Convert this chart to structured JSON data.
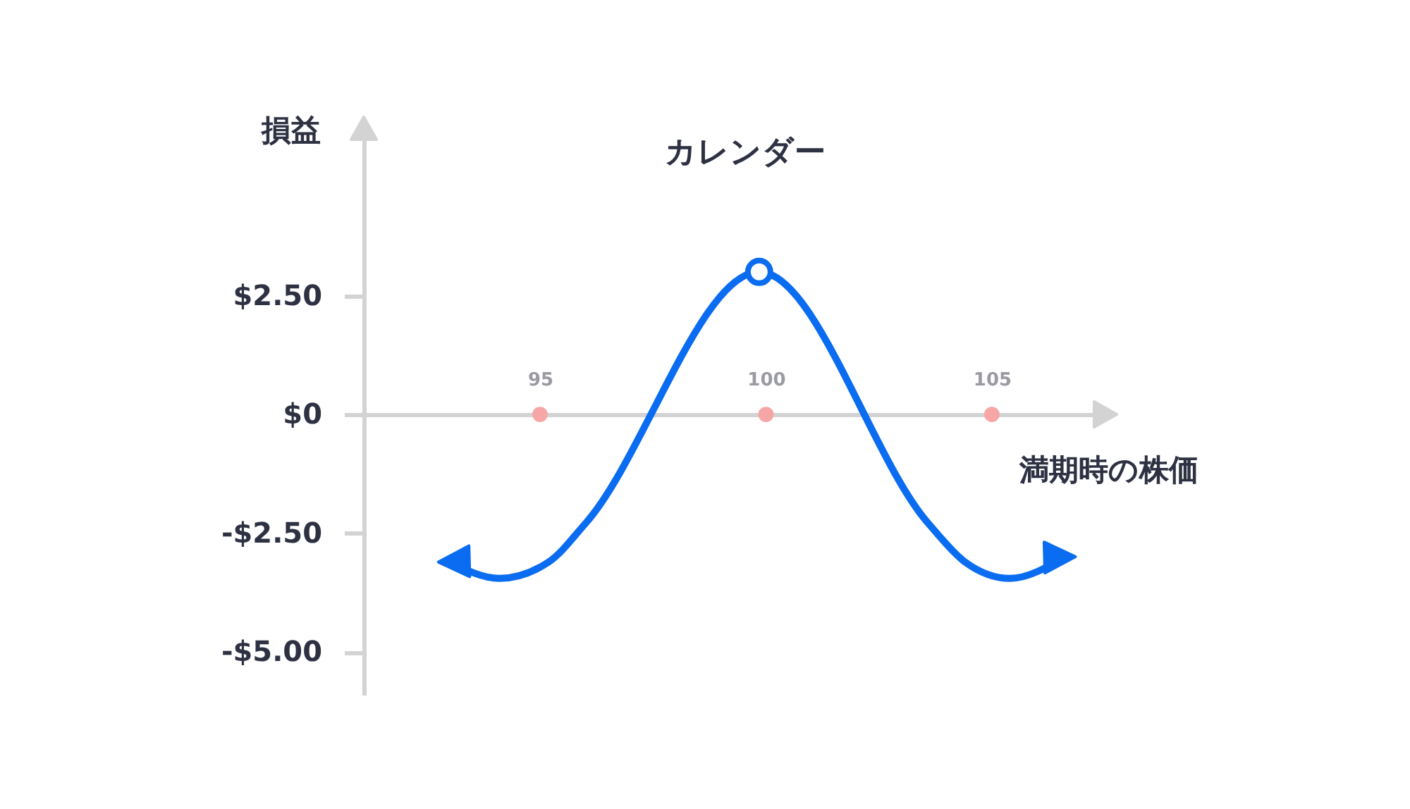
{
  "chart_data": {
    "type": "line",
    "title": "カレンダー",
    "xlabel": "満期時の株価",
    "ylabel": "損益",
    "xlim": [
      91.1,
      107.7
    ],
    "xticks": [
      95,
      100,
      105
    ],
    "ylim": [
      -5.9,
      6.2
    ],
    "yticks": [
      {
        "value": 2.5,
        "label": "$2.50"
      },
      {
        "value": 0,
        "label": "$0"
      },
      {
        "value": -2.5,
        "label": "-$2.50"
      },
      {
        "value": -5,
        "label": "-$5.00"
      }
    ],
    "grid": false,
    "series": [
      {
        "color": "#0a6cf0",
        "x": [
          93.0,
          94.1,
          95.2,
          96.0,
          99.85,
          103.6,
          104.4,
          105.4,
          106.6
        ],
        "values": [
          -3.1,
          -3.45,
          -3.1,
          -2.3,
          3.0,
          -2.3,
          -3.1,
          -3.45,
          -3.0
        ]
      },
      {
        "type": "scatter",
        "color": "#f6a6a6",
        "x": [
          95,
          100,
          105
        ],
        "values": [
          0,
          0,
          0
        ]
      }
    ]
  }
}
